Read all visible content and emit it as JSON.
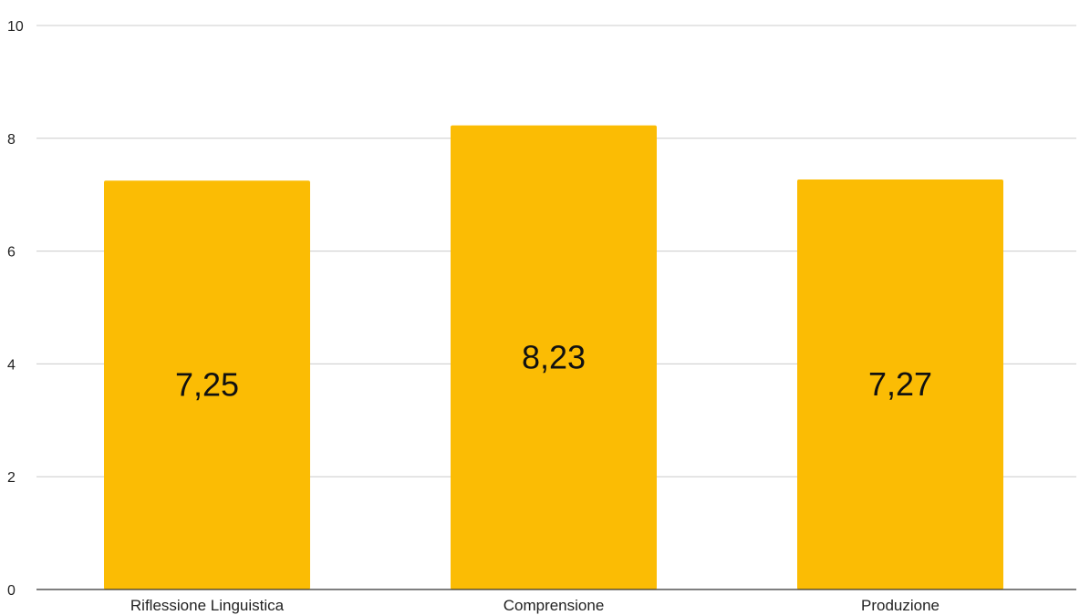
{
  "chart_data": {
    "type": "bar",
    "categories": [
      "Riflessione Linguistica",
      "Comprensione",
      "Produzione"
    ],
    "values": [
      7.25,
      8.23,
      7.27
    ],
    "data_labels": [
      "7,25",
      "8,23",
      "7,27"
    ],
    "ylim": [
      0,
      10
    ],
    "y_ticks": [
      0,
      2,
      4,
      6,
      8,
      10
    ],
    "y_tick_labels": [
      "0",
      "2",
      "4",
      "6",
      "8",
      "10"
    ],
    "grid": true,
    "bar_color": "#FBBC04",
    "title": "",
    "xlabel": "",
    "ylabel": ""
  }
}
